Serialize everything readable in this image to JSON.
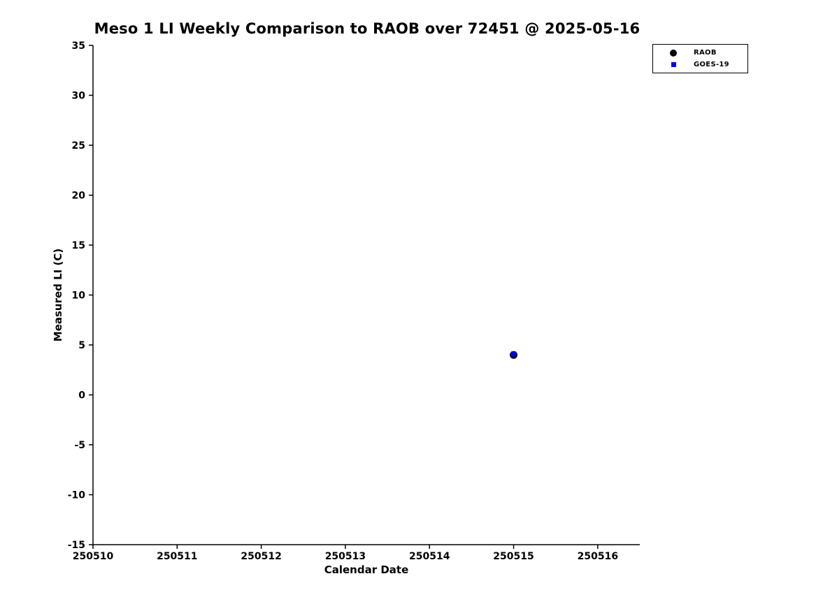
{
  "figure": {
    "title": "Meso 1 LI Weekly Comparison to RAOB over 72451 @ 2025-05-16"
  },
  "chart_data": {
    "type": "scatter",
    "title": "Meso 1 LI Weekly Comparison to RAOB over 72451 @ 2025-05-16",
    "xlabel": "Calendar Date",
    "ylabel": "Measured LI (C)",
    "xlim": [
      250510,
      250516.5
    ],
    "ylim": [
      -15,
      35
    ],
    "xticks": [
      250510,
      250511,
      250512,
      250513,
      250514,
      250515,
      250516
    ],
    "yticks": [
      35,
      30,
      25,
      20,
      15,
      10,
      5,
      0,
      -5,
      -10,
      -15
    ],
    "grid": false,
    "legend_position": "top-right",
    "series": [
      {
        "name": "RAOB",
        "marker": "circle",
        "color": "#000000",
        "marker_size": 11,
        "points": [
          {
            "x": 250515,
            "y": 4.0
          }
        ]
      },
      {
        "name": "GOES-19",
        "marker": "square",
        "color": "#0000ff",
        "marker_size": 7,
        "points": [
          {
            "x": 250515,
            "y": 4.1
          }
        ]
      }
    ]
  },
  "colors": {
    "background": "#ffffff",
    "axis": "#000000",
    "text": "#000000",
    "raob_marker": "#000000",
    "goes19_marker": "#0000ff"
  }
}
